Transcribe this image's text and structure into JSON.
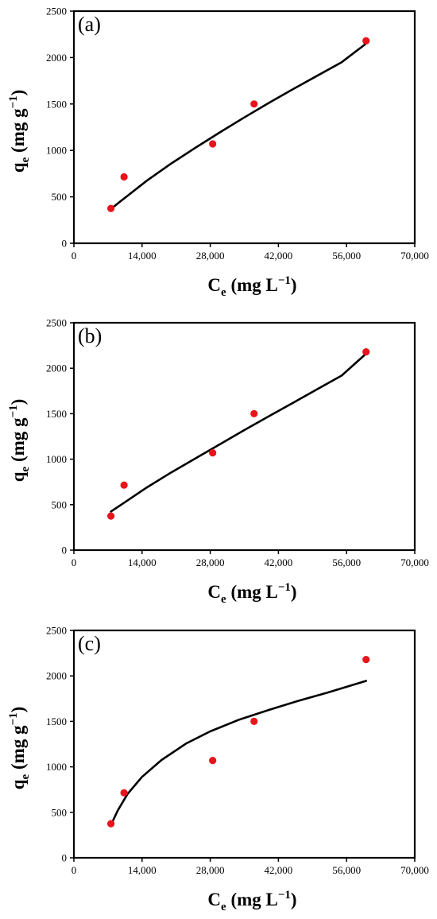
{
  "chart_data": [
    {
      "type": "scatter",
      "panel_label": "(a)",
      "xlabel": "C",
      "xlabel_sub": "e",
      "xlabel_unit": " (mg L",
      "xlabel_unit_sup": "−1",
      "xlabel_close": ")",
      "ylabel": "q",
      "ylabel_sub": "e",
      "ylabel_unit": " (mg g",
      "ylabel_unit_sup": "−1",
      "ylabel_close": ")",
      "xlim": [
        0,
        70000
      ],
      "ylim": [
        0,
        2500
      ],
      "xticks": [
        0,
        14000,
        28000,
        42000,
        56000,
        70000
      ],
      "xtick_labels": [
        "0",
        "14,000",
        "28,000",
        "42,000",
        "56,000",
        "70,000"
      ],
      "yticks": [
        0,
        500,
        1000,
        1500,
        2000,
        2500
      ],
      "ytick_labels": [
        "0",
        "500",
        "1000",
        "1500",
        "2000",
        "2500"
      ],
      "grid": false,
      "points": {
        "color": "#e8141b",
        "x": [
          7600,
          10300,
          28500,
          37000,
          60000
        ],
        "y": [
          375,
          715,
          1070,
          1500,
          2180
        ]
      },
      "fit_curve": {
        "color": "#000000",
        "x": [
          7600,
          10000,
          15000,
          20000,
          25000,
          30000,
          35000,
          40000,
          45000,
          50000,
          55000,
          60000
        ],
        "y": [
          370,
          470,
          675,
          860,
          1030,
          1195,
          1355,
          1510,
          1660,
          1805,
          1950,
          2150
        ]
      }
    },
    {
      "type": "scatter",
      "panel_label": "(b)",
      "xlabel": "C",
      "xlabel_sub": "e",
      "xlabel_unit": " (mg L",
      "xlabel_unit_sup": "−1",
      "xlabel_close": ")",
      "ylabel": "q",
      "ylabel_sub": "e",
      "ylabel_unit": " (mg g",
      "ylabel_unit_sup": "−1",
      "ylabel_close": ")",
      "xlim": [
        0,
        70000
      ],
      "ylim": [
        0,
        2500
      ],
      "xticks": [
        0,
        14000,
        28000,
        42000,
        56000,
        70000
      ],
      "xtick_labels": [
        "0",
        "14,000",
        "28,000",
        "42,000",
        "56,000",
        "70,000"
      ],
      "yticks": [
        0,
        500,
        1000,
        1500,
        2000,
        2500
      ],
      "ytick_labels": [
        "0",
        "500",
        "1000",
        "1500",
        "2000",
        "2500"
      ],
      "grid": false,
      "points": {
        "color": "#e8141b",
        "x": [
          7600,
          10300,
          28500,
          37000,
          60000
        ],
        "y": [
          375,
          715,
          1070,
          1500,
          2180
        ]
      },
      "fit_curve": {
        "color": "#000000",
        "x": [
          7600,
          10000,
          15000,
          20000,
          25000,
          30000,
          35000,
          40000,
          45000,
          50000,
          55000,
          60000
        ],
        "y": [
          425,
          510,
          690,
          855,
          1010,
          1165,
          1320,
          1470,
          1620,
          1770,
          1920,
          2160
        ]
      }
    },
    {
      "type": "scatter",
      "panel_label": "(c)",
      "xlabel": "C",
      "xlabel_sub": "e",
      "xlabel_unit": " (mg L",
      "xlabel_unit_sup": "−1",
      "xlabel_close": ")",
      "ylabel": "q",
      "ylabel_sub": "e",
      "ylabel_unit": " (mg g",
      "ylabel_unit_sup": "−1",
      "ylabel_close": ")",
      "xlim": [
        0,
        70000
      ],
      "ylim": [
        0,
        2500
      ],
      "xticks": [
        0,
        14000,
        28000,
        42000,
        56000,
        70000
      ],
      "xtick_labels": [
        "0",
        "14,000",
        "28,000",
        "42,000",
        "56,000",
        "70,000"
      ],
      "yticks": [
        0,
        500,
        1000,
        1500,
        2000,
        2500
      ],
      "ytick_labels": [
        "0",
        "500",
        "1000",
        "1500",
        "2000",
        "2500"
      ],
      "grid": false,
      "points": {
        "color": "#e8141b",
        "x": [
          7600,
          10300,
          28500,
          37000,
          60000
        ],
        "y": [
          375,
          715,
          1070,
          1500,
          2180
        ]
      },
      "fit_curve": {
        "color": "#000000",
        "x": [
          7600,
          9000,
          11000,
          14000,
          18000,
          23000,
          28000,
          34000,
          40000,
          46000,
          52000,
          60000
        ],
        "y": [
          360,
          520,
          700,
          890,
          1075,
          1255,
          1390,
          1520,
          1625,
          1725,
          1815,
          1945
        ]
      }
    }
  ]
}
